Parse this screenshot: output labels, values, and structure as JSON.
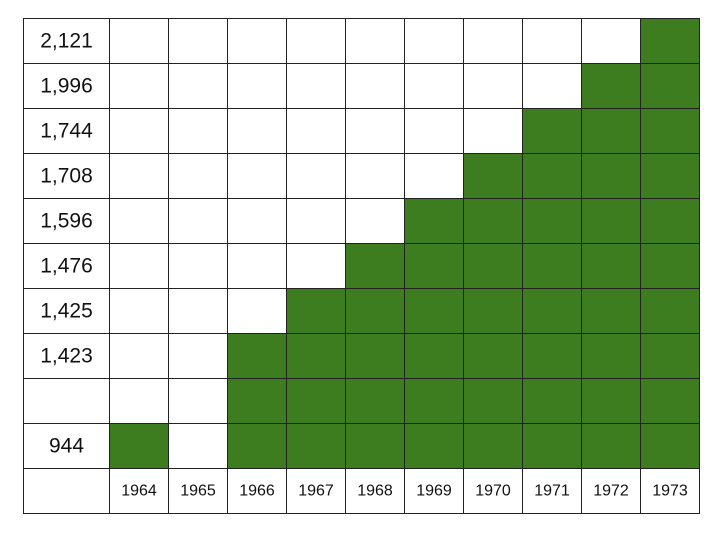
{
  "chart_data": {
    "type": "heatmap",
    "filled_color": "#3d7d1f",
    "empty_color": "#ffffff",
    "grid_color": "#222222",
    "columns": [
      "1964",
      "1965",
      "1966",
      "1967",
      "1968",
      "1969",
      "1970",
      "1971",
      "1972",
      "1973"
    ],
    "rows": [
      {
        "label": "2,121",
        "filled": [
          0,
          0,
          0,
          0,
          0,
          0,
          0,
          0,
          0,
          1
        ]
      },
      {
        "label": "1,996",
        "filled": [
          0,
          0,
          0,
          0,
          0,
          0,
          0,
          0,
          1,
          1
        ]
      },
      {
        "label": "1,744",
        "filled": [
          0,
          0,
          0,
          0,
          0,
          0,
          0,
          1,
          1,
          1
        ]
      },
      {
        "label": "1,708",
        "filled": [
          0,
          0,
          0,
          0,
          0,
          0,
          1,
          1,
          1,
          1
        ]
      },
      {
        "label": "1,596",
        "filled": [
          0,
          0,
          0,
          0,
          0,
          1,
          1,
          1,
          1,
          1
        ]
      },
      {
        "label": "1,476",
        "filled": [
          0,
          0,
          0,
          0,
          1,
          1,
          1,
          1,
          1,
          1
        ]
      },
      {
        "label": "1,425",
        "filled": [
          0,
          0,
          0,
          1,
          1,
          1,
          1,
          1,
          1,
          1
        ]
      },
      {
        "label": "1,423",
        "filled": [
          0,
          0,
          1,
          1,
          1,
          1,
          1,
          1,
          1,
          1
        ]
      },
      {
        "label": "",
        "filled": [
          0,
          0,
          1,
          1,
          1,
          1,
          1,
          1,
          1,
          1
        ]
      },
      {
        "label": "944",
        "filled": [
          1,
          0,
          1,
          1,
          1,
          1,
          1,
          1,
          1,
          1
        ]
      }
    ]
  }
}
